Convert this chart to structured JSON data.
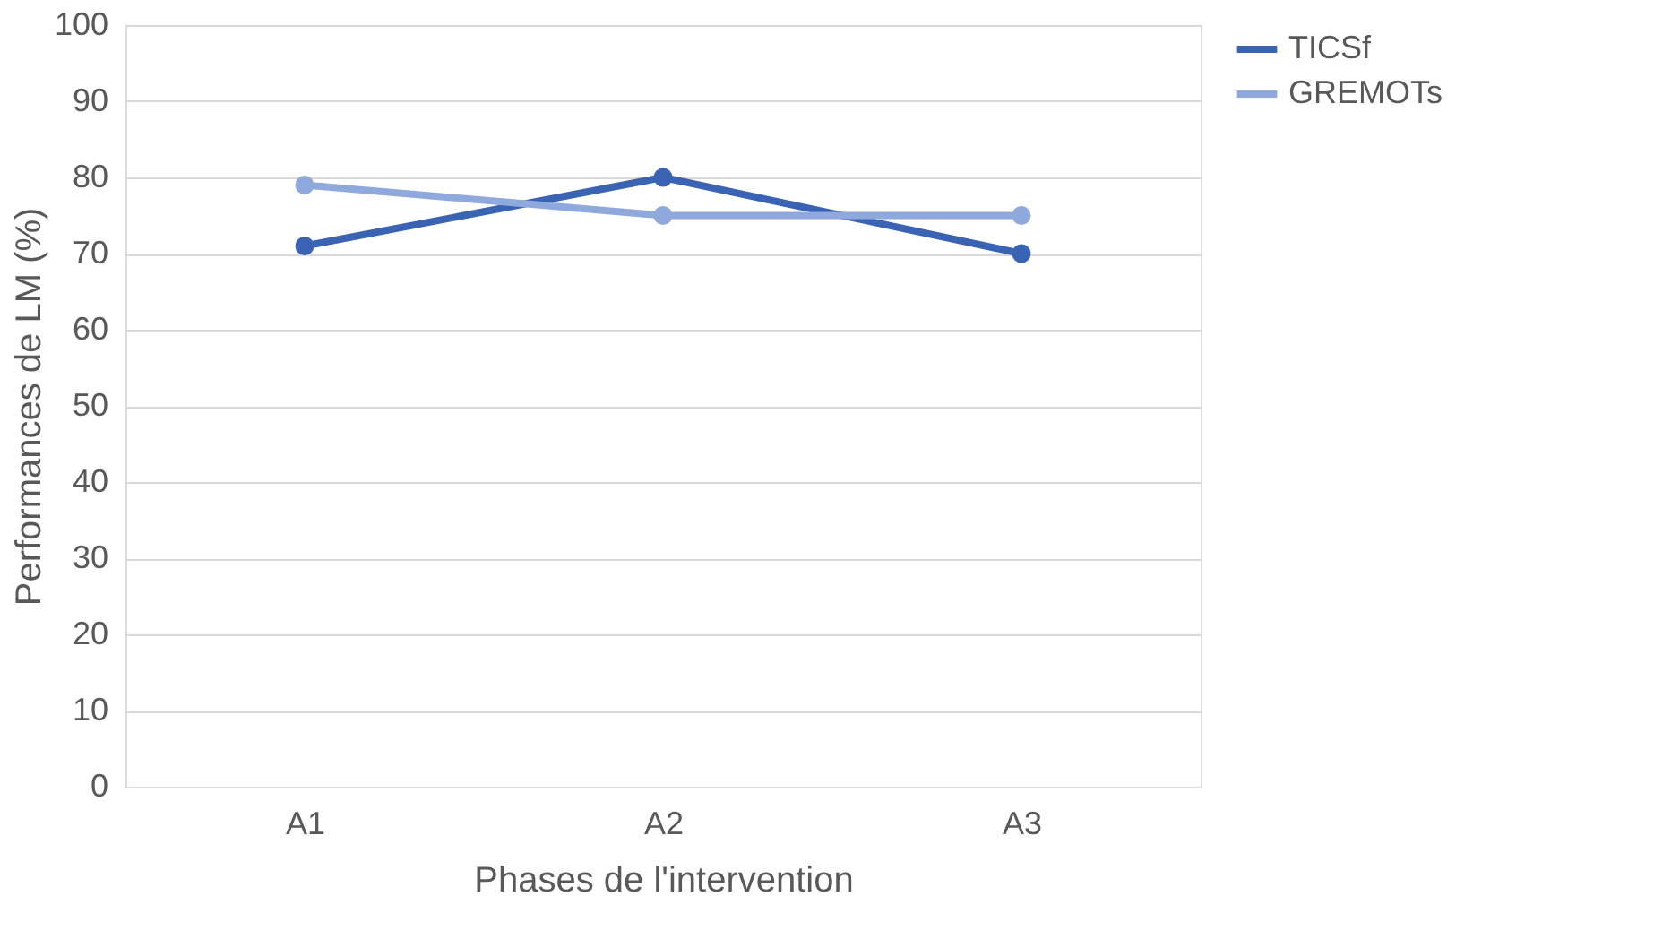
{
  "chart_data": {
    "type": "line",
    "xlabel": "Phases de l'intervention",
    "ylabel": "Performances de LM (%)",
    "categories": [
      "A1",
      "A2",
      "A3"
    ],
    "series": [
      {
        "name": "TICSf",
        "color": "#3b63b4",
        "values": [
          71,
          80,
          70
        ]
      },
      {
        "name": "GREMOTs",
        "color": "#8fa9dc",
        "values": [
          79,
          75,
          75
        ]
      }
    ],
    "ylim": [
      0,
      100
    ],
    "yticks": [
      0,
      10,
      20,
      30,
      40,
      50,
      60,
      70,
      80,
      90,
      100
    ],
    "grid": "y",
    "legend": "right",
    "marker": "circle",
    "line_style": "solid"
  }
}
